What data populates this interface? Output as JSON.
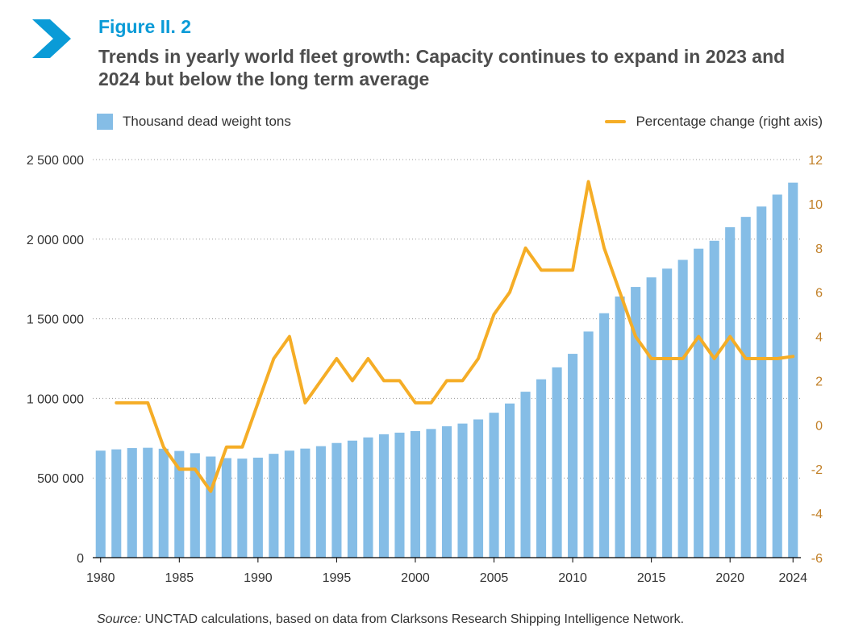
{
  "figure_label": "Figure II. 2",
  "figure_title": "Trends in yearly world fleet growth: Capacity continues to expand in 2023 and 2024 but below the long term average",
  "legend": {
    "bars": "Thousand dead weight tons",
    "line": "Percentage change (right axis)"
  },
  "source": {
    "prefix": "Source:",
    "text": " UNCTAD calculations, based on data from Clarksons Research Shipping Intelligence Network."
  },
  "colors": {
    "accent": "#0a9bd7",
    "bars": "#85bde6",
    "line": "#f5ad26",
    "right_axis": "#c17f26"
  },
  "chart_data": {
    "type": "bar",
    "x": [
      1980,
      1981,
      1982,
      1983,
      1984,
      1985,
      1986,
      1987,
      1988,
      1989,
      1990,
      1991,
      1992,
      1993,
      1994,
      1995,
      1996,
      1997,
      1998,
      1999,
      2000,
      2001,
      2002,
      2003,
      2004,
      2005,
      2006,
      2007,
      2008,
      2009,
      2010,
      2011,
      2012,
      2013,
      2014,
      2015,
      2016,
      2017,
      2018,
      2019,
      2020,
      2021,
      2022,
      2023,
      2024
    ],
    "x_tick_labels": [
      "1980",
      "1985",
      "1990",
      "1995",
      "2000",
      "2005",
      "2010",
      "2015",
      "2020",
      "2024"
    ],
    "series": [
      {
        "name": "Thousand dead weight tons",
        "type": "bar",
        "axis": "left",
        "values": [
          672000,
          680000,
          688000,
          690000,
          684000,
          670000,
          656000,
          635000,
          625000,
          622000,
          628000,
          652000,
          672000,
          685000,
          700000,
          720000,
          735000,
          755000,
          775000,
          785000,
          795000,
          808000,
          825000,
          842000,
          868000,
          910000,
          968000,
          1042000,
          1120000,
          1195000,
          1280000,
          1420000,
          1535000,
          1640000,
          1700000,
          1760000,
          1815000,
          1870000,
          1940000,
          1990000,
          2075000,
          2140000,
          2205000,
          2280000,
          2355000
        ]
      },
      {
        "name": "Percentage change (right axis)",
        "type": "line",
        "axis": "right",
        "x": [
          1981,
          1982,
          1983,
          1984,
          1985,
          1986,
          1987,
          1988,
          1989,
          1990,
          1991,
          1992,
          1993,
          1994,
          1995,
          1996,
          1997,
          1998,
          1999,
          2000,
          2001,
          2002,
          2003,
          2004,
          2005,
          2006,
          2007,
          2008,
          2009,
          2010,
          2011,
          2012,
          2013,
          2014,
          2015,
          2016,
          2017,
          2018,
          2019,
          2020,
          2021,
          2022,
          2023,
          2024
        ],
        "values": [
          1,
          1,
          1,
          -1,
          -2,
          -2,
          -3,
          -1,
          -1,
          1,
          3,
          4,
          1,
          2,
          3,
          2,
          3,
          2,
          2,
          1,
          1,
          2,
          2,
          3,
          5,
          6,
          8,
          7,
          7,
          7,
          11,
          8,
          6,
          4,
          3,
          3,
          3,
          4,
          3,
          4,
          3,
          3,
          3,
          3.1
        ]
      }
    ],
    "y_left": {
      "min": 0,
      "max": 2500000,
      "ticks": [
        "0",
        "500 000",
        "1 000 000",
        "1 500 000",
        "2 000 000",
        "2 500 000"
      ]
    },
    "y_right": {
      "min": -6,
      "max": 12,
      "ticks": [
        "-6",
        "-4",
        "-2",
        "0",
        "2",
        "4",
        "6",
        "8",
        "10",
        "12"
      ]
    },
    "grid": "horizontal dotted"
  }
}
